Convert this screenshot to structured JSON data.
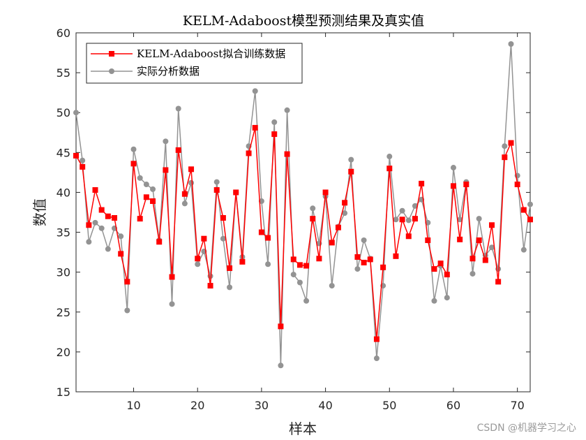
{
  "chart_data": {
    "type": "line",
    "title": "KELM-Adaboost模型预测结果及真实值",
    "xlabel": "样本",
    "ylabel": "数值",
    "xlim": [
      1,
      72
    ],
    "ylim": [
      15,
      60
    ],
    "xticks": [
      10,
      20,
      30,
      40,
      50,
      60,
      70
    ],
    "yticks": [
      15,
      20,
      25,
      30,
      35,
      40,
      45,
      50,
      55,
      60
    ],
    "grid": false,
    "legend_position": "top-left",
    "series": [
      {
        "name": "KELM-Adaboost拟合训练数据",
        "color": "#ff0000",
        "marker": "square",
        "values": [
          44.6,
          43.2,
          35.9,
          40.3,
          37.8,
          37.0,
          36.8,
          32.3,
          28.8,
          43.6,
          36.7,
          39.4,
          38.9,
          33.8,
          42.8,
          29.4,
          45.3,
          39.8,
          42.9,
          31.7,
          34.2,
          28.3,
          40.3,
          36.8,
          30.5,
          40.0,
          31.3,
          44.9,
          48.1,
          35.0,
          34.3,
          47.3,
          23.2,
          44.8,
          31.6,
          30.9,
          30.8,
          36.7,
          31.7,
          40.0,
          33.7,
          35.6,
          38.7,
          42.6,
          31.9,
          31.2,
          31.6,
          21.6,
          30.6,
          43.0,
          32.0,
          36.6,
          34.5,
          36.7,
          41.1,
          34.0,
          30.4,
          31.1,
          29.7,
          40.8,
          34.1,
          41.0,
          31.7,
          34.0,
          31.5,
          35.9,
          28.8,
          44.4,
          46.2,
          41.0,
          37.8,
          36.6
        ]
      },
      {
        "name": "实际分析数据",
        "color": "#939393",
        "marker": "circle",
        "values": [
          50.0,
          44.0,
          33.8,
          36.2,
          35.5,
          32.9,
          35.5,
          34.5,
          25.2,
          45.4,
          41.8,
          41.0,
          40.4,
          34.0,
          46.4,
          26.0,
          50.5,
          38.6,
          41.2,
          31.0,
          32.6,
          29.5,
          41.3,
          34.2,
          28.1,
          40.0,
          31.9,
          45.8,
          52.7,
          38.9,
          31.0,
          48.8,
          18.3,
          50.3,
          29.7,
          28.7,
          26.4,
          38.0,
          33.6,
          39.5,
          28.3,
          35.7,
          37.4,
          44.1,
          30.4,
          34.0,
          31.7,
          19.2,
          28.3,
          44.5,
          36.6,
          37.7,
          36.5,
          38.3,
          39.1,
          36.2,
          26.4,
          30.8,
          26.8,
          43.1,
          36.6,
          41.3,
          29.8,
          36.7,
          32.1,
          33.1,
          30.4,
          45.8,
          58.6,
          42.1,
          32.8,
          38.5
        ]
      }
    ]
  },
  "watermark": "CSDN @机器学习之心"
}
